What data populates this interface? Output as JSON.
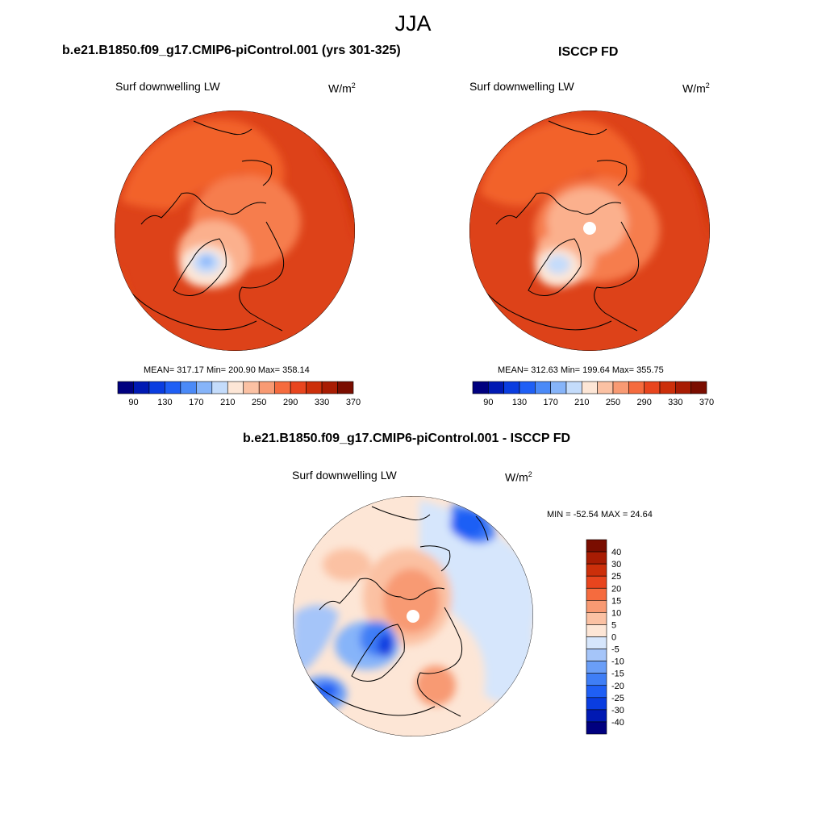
{
  "title": "JJA",
  "colors": {
    "abs_scale": [
      "#00007f",
      "#0019b3",
      "#0a3de0",
      "#1f5ff5",
      "#4b8af7",
      "#86b4f9",
      "#c4dcfb",
      "#fde6d6",
      "#fbc1a3",
      "#f89a73",
      "#f56b3e",
      "#e8451e",
      "#cc2f0a",
      "#a81c03",
      "#7a0d00"
    ],
    "diff_scale": [
      "#00007f",
      "#0019b3",
      "#0a3de0",
      "#1f5ff5",
      "#3f7ef6",
      "#6a9ef7",
      "#a5c5f9",
      "#d6e6fc",
      "#fde6d6",
      "#fbc1a3",
      "#f89a73",
      "#f56b3e",
      "#e8451e",
      "#cc2f0a",
      "#a81c03",
      "#7a0d00"
    ]
  },
  "panels": {
    "model": {
      "title": "b.e21.B1850.f09_g17.CMIP6-piControl.001 (yrs 301-325)",
      "variable": "Surf downwelling LW",
      "units": "W/m",
      "units_sup": "2",
      "stats": "MEAN= 317.17  Min= 200.90  Max= 358.14"
    },
    "obs": {
      "title": "ISCCP FD",
      "variable": "Surf downwelling LW",
      "units": "W/m",
      "units_sup": "2",
      "stats": "MEAN= 312.63  Min= 199.64  Max= 355.75"
    },
    "diff": {
      "title": "b.e21.B1850.f09_g17.CMIP6-piControl.001 - ISCCP FD",
      "variable": "Surf downwelling LW",
      "units": "W/m",
      "units_sup": "2",
      "stats": "MIN = -52.54 MAX =  24.64"
    }
  },
  "chart_data": [
    {
      "type": "heatmap",
      "title": "b.e21.B1850.f09_g17.CMIP6-piControl.001 (yrs 301-325)",
      "subtitle": "Surf downwelling LW",
      "units": "W/m2",
      "mean": 317.17,
      "min": 200.9,
      "max": 358.14,
      "colorbar_ticks": [
        90,
        130,
        170,
        210,
        250,
        290,
        330,
        370
      ]
    },
    {
      "type": "heatmap",
      "title": "ISCCP FD",
      "subtitle": "Surf downwelling LW",
      "units": "W/m2",
      "mean": 312.63,
      "min": 199.64,
      "max": 355.75,
      "colorbar_ticks": [
        90,
        130,
        170,
        210,
        250,
        290,
        330,
        370
      ]
    },
    {
      "type": "heatmap",
      "title": "b.e21.B1850.f09_g17.CMIP6-piControl.001 - ISCCP FD",
      "subtitle": "Surf downwelling LW",
      "units": "W/m2",
      "min": -52.54,
      "max": 24.64,
      "colorbar_ticks": [
        "40",
        "30",
        "25",
        "20",
        "15",
        "10",
        "5",
        "0",
        "-5",
        "-10",
        "-15",
        "-20",
        "-25",
        "-30",
        "-40"
      ]
    }
  ]
}
